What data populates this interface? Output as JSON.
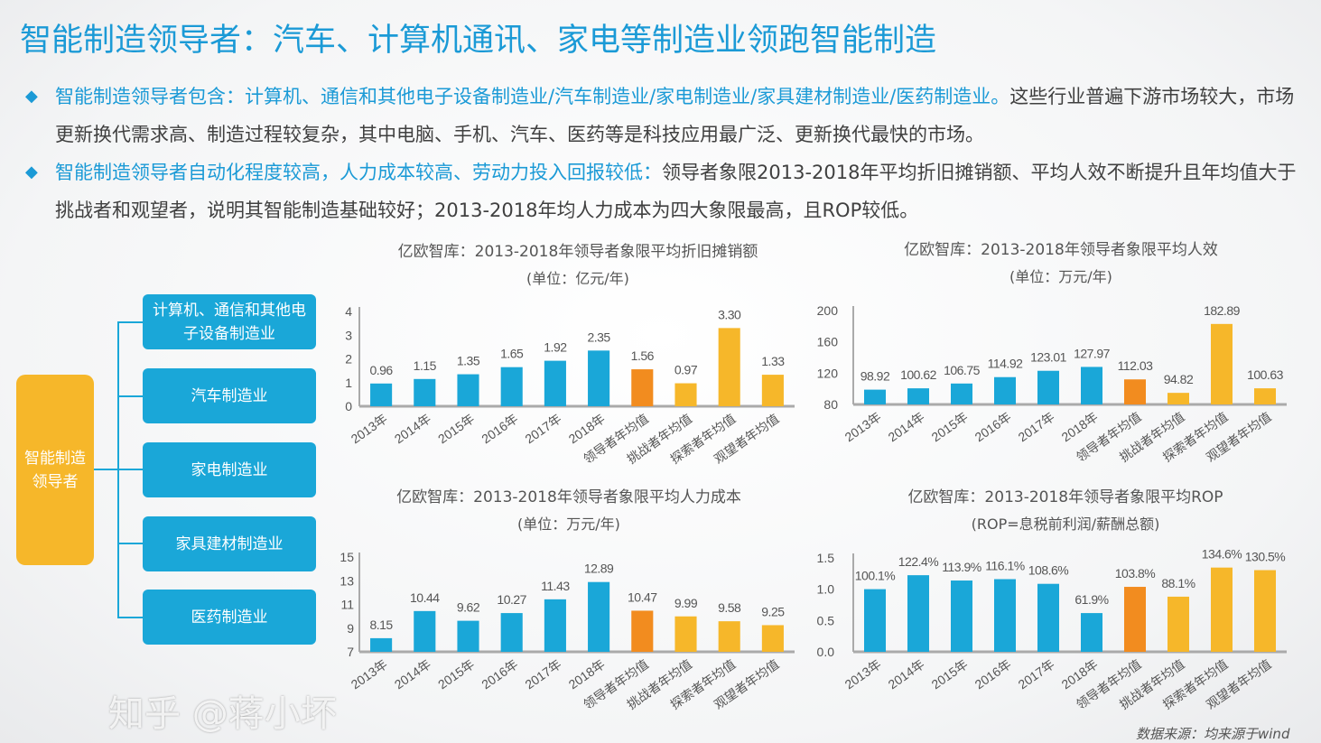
{
  "title": "智能制造领导者：汽车、计算机通讯、家电等制造业领跑智能制造",
  "bullets": [
    {
      "highlight": "智能制造领导者包含：计算机、通信和其他电子设备制造业/汽车制造业/家电制造业/家具建材制造业/医药制造业。",
      "text": "这些行业普遍下游市场较大，市场更新换代需求高、制造过程较复杂，其中电脑、手机、汽车、医药等是科技应用最广泛、更新换代最快的市场。"
    },
    {
      "highlight": "智能制造领导者自动化程度较高，人力成本较高、劳动力投入回报较低：",
      "text": "领导者象限2013-2018年平均折旧摊销额、平均人效不断提升且年均值大于挑战者和观望者，说明其智能制造基础较好；2013-2018年均人力成本为四大象限最高，且ROP较低。"
    }
  ],
  "tree": {
    "root": "智能制造领导者",
    "children": [
      "计算机、通信和其他电子设备制造业",
      "汽车制造业",
      "家电制造业",
      "家具建材制造业",
      "医药制造业"
    ]
  },
  "colors": {
    "title": "#1b9ad6",
    "year": "#1aa7d8",
    "leader": "#f28c1f",
    "others": "#f6b72a"
  },
  "chart_data": [
    {
      "type": "bar",
      "title": "亿欧智库：2013-2018年领导者象限平均折旧摊销额",
      "subtitle": "(单位：亿元/年)",
      "categories": [
        "2013年",
        "2014年",
        "2015年",
        "2016年",
        "2017年",
        "2018年",
        "领导者年均值",
        "挑战者年均值",
        "探索者年均值",
        "观望者年均值"
      ],
      "values": [
        0.96,
        1.15,
        1.35,
        1.65,
        1.92,
        2.35,
        1.56,
        0.97,
        3.3,
        1.33
      ],
      "labels": [
        "0.96",
        "1.15",
        "1.35",
        "1.65",
        "1.92",
        "2.35",
        "1.56",
        "0.97",
        "3.30",
        "1.33"
      ],
      "ylim": [
        0,
        4
      ],
      "yticks": [
        "0",
        "1",
        "2",
        "3",
        "4"
      ]
    },
    {
      "type": "bar",
      "title": "亿欧智库：2013-2018年领导者象限平均人效",
      "subtitle": "(单位：万元/年)",
      "categories": [
        "2013年",
        "2014年",
        "2015年",
        "2016年",
        "2017年",
        "2018年",
        "领导者年均值",
        "挑战者年均值",
        "探索者年均值",
        "观望者年均值"
      ],
      "values": [
        98.92,
        100.62,
        106.75,
        114.92,
        123.01,
        127.97,
        112.03,
        94.82,
        182.89,
        100.63
      ],
      "labels": [
        "98.92",
        "100.62",
        "106.75",
        "114.92",
        "123.01",
        "127.97",
        "112.03",
        "94.82",
        "182.89",
        "100.63"
      ],
      "ylim": [
        80,
        200
      ],
      "yticks": [
        "80",
        "120",
        "160",
        "200"
      ]
    },
    {
      "type": "bar",
      "title": "亿欧智库：2013-2018年领导者象限平均人力成本",
      "subtitle": "(单位：万元/年)",
      "categories": [
        "2013年",
        "2014年",
        "2015年",
        "2016年",
        "2017年",
        "2018年",
        "领导者年均值",
        "挑战者年均值",
        "探索者年均值",
        "观望者年均值"
      ],
      "values": [
        8.15,
        10.44,
        9.62,
        10.27,
        11.43,
        12.89,
        10.47,
        9.99,
        9.58,
        9.25
      ],
      "labels": [
        "8.15",
        "10.44",
        "9.62",
        "10.27",
        "11.43",
        "12.89",
        "10.47",
        "9.99",
        "9.58",
        "9.25"
      ],
      "ylim": [
        7,
        15
      ],
      "yticks": [
        "7",
        "9",
        "11",
        "13",
        "15"
      ]
    },
    {
      "type": "bar",
      "title": "亿欧智库：2013-2018年领导者象限平均ROP",
      "subtitle": "(ROP=息税前利润/薪酬总额)",
      "categories": [
        "2013年",
        "2014年",
        "2015年",
        "2016年",
        "2017年",
        "2018年",
        "领导者年均值",
        "挑战者年均值",
        "探索者年均值",
        "观望者年均值"
      ],
      "values": [
        1.001,
        1.224,
        1.139,
        1.161,
        1.086,
        0.619,
        1.038,
        0.881,
        1.346,
        1.305
      ],
      "labels": [
        "100.1%",
        "122.4%",
        "113.9%",
        "116.1%",
        "108.6%",
        "61.9%",
        "103.8%",
        "88.1%",
        "134.6%",
        "130.5%"
      ],
      "ylim": [
        0,
        1.5
      ],
      "yticks": [
        "0.0",
        "0.5",
        "1.0",
        "1.5"
      ]
    }
  ],
  "watermark": "知乎 @蒋小坏",
  "source": "数据来源：均来源于wind"
}
